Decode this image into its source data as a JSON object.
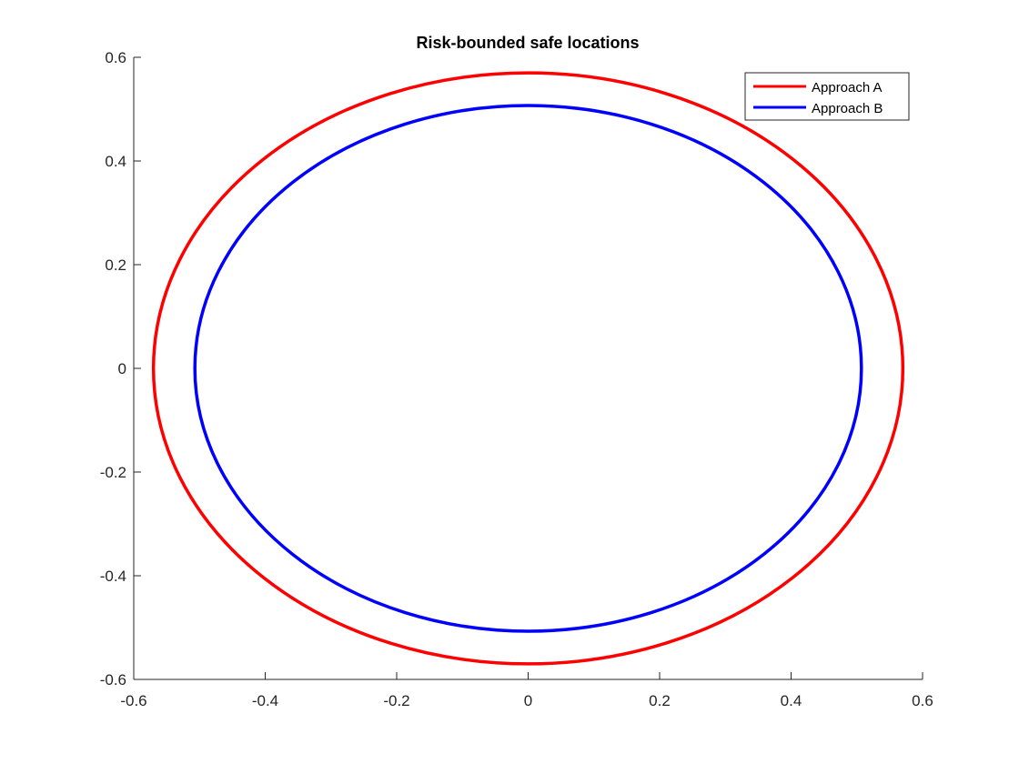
{
  "chart_data": {
    "type": "line",
    "title": "Risk-bounded safe locations",
    "xlabel": "",
    "ylabel": "",
    "xlim": [
      -0.6,
      0.6
    ],
    "ylim": [
      -0.6,
      0.6
    ],
    "xticks": [
      -0.6,
      -0.4,
      -0.2,
      0,
      0.2,
      0.4,
      0.6
    ],
    "yticks": [
      -0.6,
      -0.4,
      -0.2,
      0,
      0.2,
      0.4,
      0.6
    ],
    "xtick_labels": [
      "-0.6",
      "-0.4",
      "-0.2",
      "0",
      "0.2",
      "0.4",
      "0.6"
    ],
    "ytick_labels": [
      "-0.6",
      "-0.4",
      "-0.2",
      "0",
      "0.2",
      "0.4",
      "0.6"
    ],
    "grid": false,
    "legend_position": "top-right",
    "series": [
      {
        "name": "Approach A",
        "color": "#ff0000",
        "shape": "circle",
        "center": [
          0,
          0
        ],
        "radius": 0.57
      },
      {
        "name": "Approach B",
        "color": "#0000ff",
        "shape": "circle",
        "center": [
          0,
          0
        ],
        "radius": 0.507
      }
    ]
  }
}
